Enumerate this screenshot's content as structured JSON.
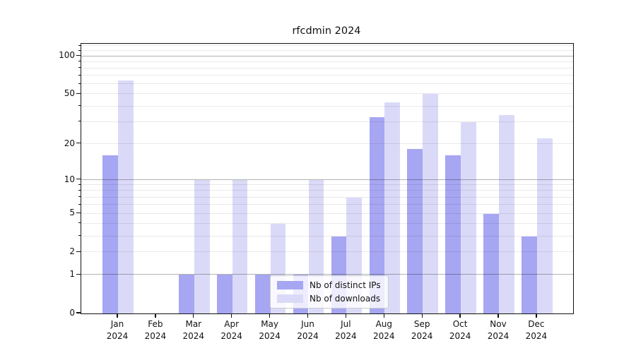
{
  "title": "rfcdmin 2024",
  "legend": {
    "items": [
      {
        "label": "Nb of distinct IPs",
        "color": "#a6a6f2"
      },
      {
        "label": "Nb of downloads",
        "color": "#dadaf8"
      }
    ]
  },
  "chart_data": {
    "type": "bar",
    "title": "rfcdmin 2024",
    "categories": [
      "Jan",
      "Feb",
      "Mar",
      "Apr",
      "May",
      "Jun",
      "Jul",
      "Aug",
      "Sep",
      "Oct",
      "Nov",
      "Dec"
    ],
    "year_label": "2024",
    "series": [
      {
        "name": "Nb of distinct IPs",
        "color": "#a6a6f2",
        "values": [
          16,
          0,
          1,
          1,
          1,
          1,
          3,
          33,
          18,
          16,
          5,
          3
        ]
      },
      {
        "name": "Nb of downloads",
        "color": "#dadaf8",
        "values": [
          64,
          0,
          10,
          10,
          4,
          10,
          7,
          43,
          50,
          30,
          34,
          22
        ]
      }
    ],
    "yscale": "log1p",
    "ylim": [
      0,
      125
    ],
    "yticks": [
      0,
      1,
      2,
      5,
      10,
      20,
      50,
      100
    ],
    "ytick_labels": [
      "0",
      "1",
      "2",
      "5",
      "10",
      "20",
      "50",
      "100"
    ],
    "major_gridlines": [
      1,
      10,
      100
    ],
    "minor_gridlines": [
      2,
      3,
      4,
      5,
      6,
      7,
      8,
      9,
      20,
      30,
      40,
      50,
      60,
      70,
      80,
      90,
      110,
      120
    ],
    "grid": "horizontal",
    "legend_position": "inside lower-center"
  }
}
